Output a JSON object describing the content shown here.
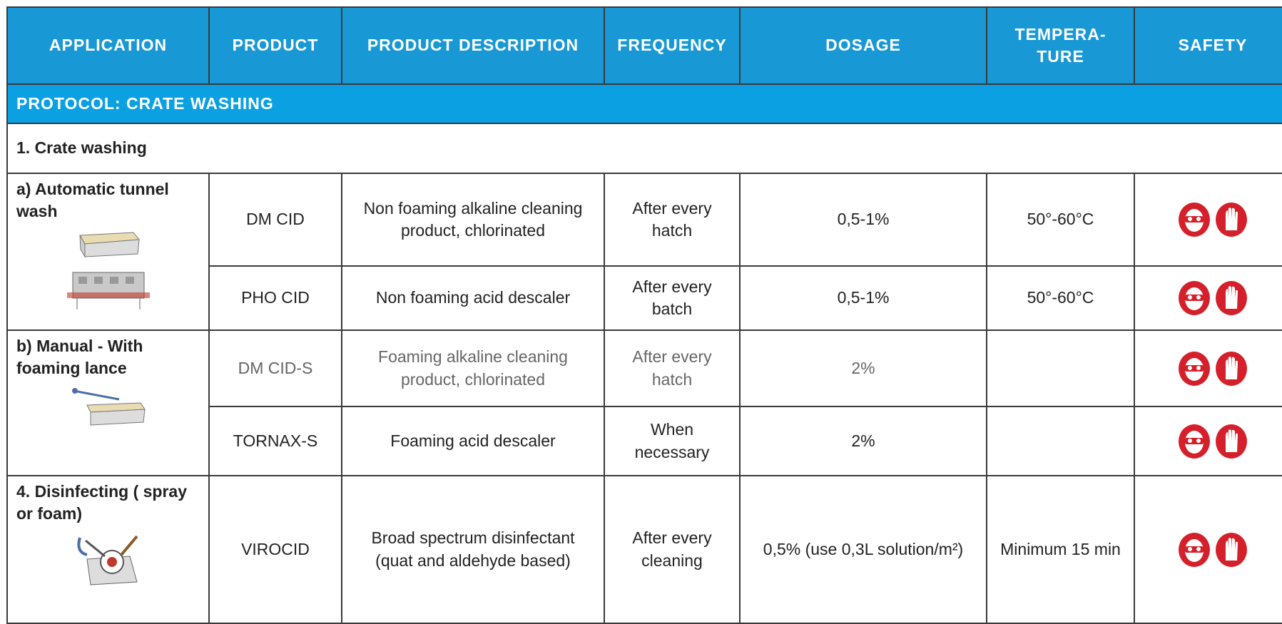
{
  "table": {
    "columns": [
      "APPLICATION",
      "PRODUCT",
      "PRODUCT DESCRIPTION",
      "FREQUENCY",
      "DOSAGE",
      "TEMPERA-TURE",
      "SAFETY"
    ],
    "protocol": "PROTOCOL: CRATE WASHING",
    "section": "1. Crate washing",
    "groups": [
      {
        "application": "a) Automatic tunnel wash",
        "rows": [
          {
            "product": "DM CID",
            "description": "Non foaming alkaline cleaning product, chlorinated",
            "frequency": "After every hatch",
            "dosage": "0,5-1%",
            "temperature": "50°-60°C"
          },
          {
            "product": "PHO CID",
            "description": "Non foaming acid descaler",
            "frequency": "After every batch",
            "dosage": "0,5-1%",
            "temperature": "50°-60°C"
          }
        ]
      },
      {
        "application": "b) Manual - With foaming lance",
        "rows": [
          {
            "product": "DM CID-S",
            "description": "Foaming alkaline cleaning product, chlorinated",
            "frequency": "After every hatch",
            "dosage": "2%"
          },
          {
            "product": "TORNAX-S",
            "description": "Foaming acid descaler",
            "frequency": "When necessary",
            "dosage": "2%"
          }
        ]
      },
      {
        "application": "4. Disinfecting ( spray or foam)",
        "rows": [
          {
            "product": "VIROCID",
            "description": "Broad spectrum disinfectant (quat and aldehyde based)",
            "frequency": "After every cleaning",
            "dosage": "0,5% (use 0,3L solution/m²)",
            "temperature": "Minimum 15 min"
          }
        ]
      }
    ]
  }
}
